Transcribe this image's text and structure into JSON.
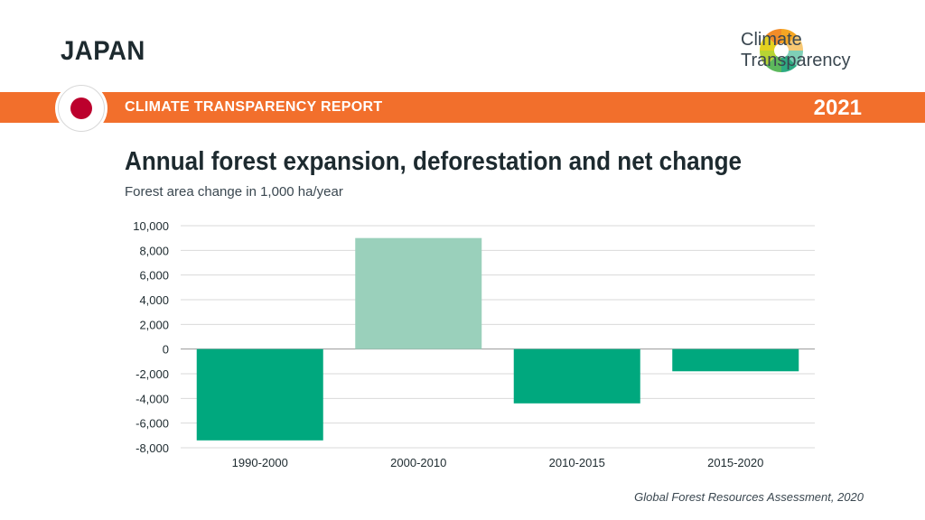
{
  "header": {
    "country": "JAPAN",
    "report_label": "CLIMATE TRANSPARENCY REPORT",
    "year": "2021",
    "logo_line1": "Climate",
    "logo_line2": "Transparency"
  },
  "colors": {
    "band": "#f26f2c",
    "bar_primary": "#00a87e",
    "bar_light": "#9ad0bb",
    "flag_red": "#bc002d"
  },
  "chart_data": {
    "type": "bar",
    "title": "Annual forest expansion, deforestation and net change",
    "subtitle": "Forest area change in 1,000 ha/year",
    "categories": [
      "1990-2000",
      "2000-2010",
      "2010-2015",
      "2015-2020"
    ],
    "values": [
      -7400,
      9000,
      -4400,
      -1800
    ],
    "ylim": [
      -8000,
      10000
    ],
    "yticks": [
      10000,
      8000,
      6000,
      4000,
      2000,
      0,
      -2000,
      -4000,
      -6000,
      -8000
    ],
    "ytick_labels": [
      "10,000",
      "8,000",
      "6,000",
      "4,000",
      "2,000",
      "0",
      "-2,000",
      "-4,000",
      "-6,000",
      "-8,000"
    ],
    "grid": true,
    "legend": "none"
  },
  "source": "Global Forest Resources Assessment, 2020"
}
